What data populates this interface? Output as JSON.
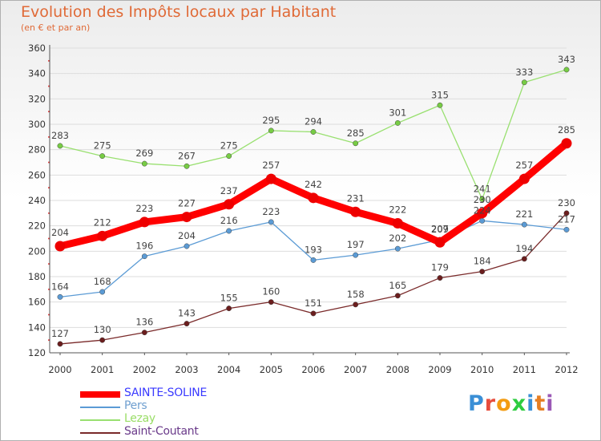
{
  "header": {
    "title": "Evolution des Impôts locaux par Habitant",
    "subtitle": "(en € et par an)"
  },
  "logo": {
    "text": "Proxiti",
    "letter_colors": [
      "#3a8fd6",
      "#e74c3c",
      "#f39c12",
      "#2ecc40",
      "#3a8fd6",
      "#e67e22",
      "#9b59b6"
    ]
  },
  "colors": {
    "title": "#e06a37",
    "axis": "#555555",
    "grid": "#dddddd",
    "tick_dot": "#e03030"
  },
  "chart_data": {
    "type": "line",
    "title": "Evolution des Impôts locaux par Habitant",
    "subtitle": "(en € et par an)",
    "xlabel": "",
    "ylabel": "",
    "x": [
      2000,
      2001,
      2002,
      2003,
      2004,
      2005,
      2006,
      2007,
      2008,
      2009,
      2010,
      2011,
      2012
    ],
    "ylim": [
      120,
      360
    ],
    "yticks": [
      120,
      140,
      160,
      180,
      200,
      220,
      240,
      260,
      280,
      300,
      320,
      340,
      360
    ],
    "grid": "horizontal",
    "legend_placement": "bottom-left",
    "series": [
      {
        "name": "SAINTE-SOLINE",
        "color": "#ff0000",
        "marker_color": "#ee0000",
        "label_color": "#3a3aff",
        "values": [
          204,
          212,
          223,
          227,
          237,
          257,
          242,
          231,
          222,
          207,
          230,
          257,
          285
        ]
      },
      {
        "name": "Pers",
        "color": "#5b9bd5",
        "marker_color": "#5b9bd5",
        "label_color": "#6f9fd0",
        "values": [
          164,
          168,
          196,
          204,
          216,
          223,
          193,
          197,
          202,
          209,
          224,
          221,
          217
        ]
      },
      {
        "name": "Lezay",
        "color": "#99e070",
        "marker_color": "#77cc44",
        "label_color": "#99dd66",
        "values": [
          283,
          275,
          269,
          267,
          275,
          295,
          294,
          285,
          301,
          315,
          241,
          333,
          343
        ]
      },
      {
        "name": "Saint-Coutant",
        "color": "#7a2a2a",
        "marker_color": "#6b1e1e",
        "label_color": "#6a3a8a",
        "values": [
          127,
          130,
          136,
          143,
          155,
          160,
          151,
          158,
          165,
          179,
          184,
          194,
          230
        ]
      }
    ]
  }
}
